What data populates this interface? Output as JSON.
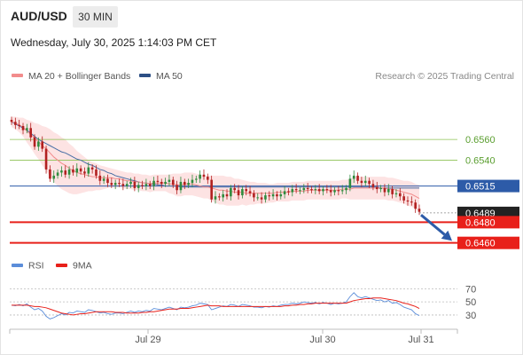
{
  "header": {
    "symbol": "AUD/USD",
    "timeframe": "30 MIN",
    "datetime": "Wednesday, July 30, 2025 1:14:03 PM CET",
    "credit": "Research © 2025 Trading Central"
  },
  "legend": {
    "ma20_label": "MA 20 + Bollinger Bands",
    "ma50_label": "MA 50",
    "rsi_label": "RSI",
    "ma9_label": "9MA"
  },
  "colors": {
    "ma20": "#f28c8c",
    "ma50": "#4a6fa5",
    "bands_fill": "#fde3e3",
    "resistance": "#8cc152",
    "support": "#e8201a",
    "pivot": "#2d5ba8",
    "current": "#222222",
    "bull": "#2e8b3e",
    "bear": "#b22020",
    "rsi": "#5b8dd9",
    "rsi_ma": "#e8201a",
    "arrow": "#2d5ba8"
  },
  "chart_data": [
    {
      "type": "candlestick",
      "title": "AUD/USD 30 MIN",
      "x_ticks": [
        "Jul 29",
        "Jul 30",
        "Jul 31"
      ],
      "ylim": [
        0.6452,
        0.6585
      ],
      "levels": [
        {
          "value": "0.6560",
          "kind": "resistance"
        },
        {
          "value": "0.6540",
          "kind": "resistance"
        },
        {
          "value": "0.6515",
          "kind": "pivot"
        },
        {
          "value": "0.6489",
          "kind": "current"
        },
        {
          "value": "0.6480",
          "kind": "support"
        },
        {
          "value": "0.6460",
          "kind": "support"
        }
      ],
      "close": [
        0.6577,
        0.6574,
        0.6573,
        0.6569,
        0.6571,
        0.6562,
        0.6553,
        0.6558,
        0.6551,
        0.6531,
        0.6522,
        0.6525,
        0.6528,
        0.653,
        0.6526,
        0.6531,
        0.6528,
        0.6532,
        0.6529,
        0.6527,
        0.6533,
        0.6531,
        0.6525,
        0.652,
        0.6522,
        0.6518,
        0.6516,
        0.6518,
        0.6517,
        0.6515,
        0.6517,
        0.6519,
        0.6513,
        0.6516,
        0.6515,
        0.6517,
        0.6515,
        0.652,
        0.6519,
        0.6517,
        0.6519,
        0.6521,
        0.6516,
        0.6511,
        0.6519,
        0.6516,
        0.6518,
        0.6521,
        0.6522,
        0.6526,
        0.6524,
        0.6521,
        0.6502,
        0.6505,
        0.6504,
        0.6507,
        0.6505,
        0.6513,
        0.6511,
        0.6506,
        0.6512,
        0.651,
        0.6508,
        0.6504,
        0.6504,
        0.6502,
        0.6506,
        0.6505,
        0.6507,
        0.6505,
        0.6507,
        0.651,
        0.6509,
        0.6512,
        0.6511,
        0.6511,
        0.6513,
        0.6512,
        0.6511,
        0.6512,
        0.651,
        0.6512,
        0.6511,
        0.6509,
        0.6511,
        0.651,
        0.6511,
        0.6513,
        0.6522,
        0.6525,
        0.652,
        0.6518,
        0.652,
        0.6517,
        0.6514,
        0.6512,
        0.6513,
        0.6509,
        0.6512,
        0.6507,
        0.6508,
        0.6505,
        0.6501,
        0.65,
        0.6499,
        0.6493,
        0.649
      ],
      "ma20": [
        0.6577,
        0.6576,
        0.6574,
        0.6572,
        0.6568,
        0.6565,
        0.6561,
        0.6558,
        0.6554,
        0.6551,
        0.6547,
        0.6543,
        0.654,
        0.6537,
        0.6535,
        0.6532,
        0.653,
        0.6528,
        0.6527,
        0.6526,
        0.6525,
        0.6524,
        0.6524,
        0.6523,
        0.6523,
        0.6523,
        0.6523,
        0.6522,
        0.6522,
        0.6521,
        0.652,
        0.652,
        0.6519,
        0.6519,
        0.6518,
        0.6518,
        0.6517,
        0.6518,
        0.6518,
        0.6518,
        0.6518,
        0.6517,
        0.6517,
        0.6516,
        0.6516,
        0.6517,
        0.6517,
        0.6517,
        0.6516,
        0.6515,
        0.6514,
        0.6514,
        0.6513,
        0.6512,
        0.6511,
        0.6511,
        0.651,
        0.651,
        0.6509,
        0.6509,
        0.6509,
        0.6508,
        0.6508,
        0.6508,
        0.6508,
        0.6508,
        0.6508,
        0.6508,
        0.6508,
        0.6509,
        0.6509,
        0.6509,
        0.6509,
        0.651,
        0.651,
        0.651,
        0.651,
        0.6511,
        0.6511,
        0.6511,
        0.6511,
        0.6511,
        0.6511,
        0.6511,
        0.6511,
        0.6511,
        0.6512,
        0.6512,
        0.6512,
        0.6513,
        0.6513,
        0.6513,
        0.6513,
        0.6513,
        0.6513,
        0.6513,
        0.6513,
        0.6513,
        0.6512,
        0.6512,
        0.6511,
        0.651,
        0.6509,
        0.6508,
        0.6507,
        0.6505,
        0.6503
      ],
      "ma50": [
        0.6577,
        0.6575,
        0.6573,
        0.6571,
        0.6569,
        0.6566,
        0.6563,
        0.656,
        0.6558,
        0.6556,
        0.6554,
        0.6552,
        0.655,
        0.6548,
        0.6547,
        0.6545,
        0.6543,
        0.6541,
        0.654,
        0.6538,
        0.6536,
        0.6535,
        0.6533,
        0.6531,
        0.653,
        0.6528,
        0.6527,
        0.6525,
        0.6524,
        0.6523,
        0.6522,
        0.6521,
        0.652,
        0.6519,
        0.6518,
        0.6518,
        0.6517,
        0.6517,
        0.6516,
        0.6516,
        0.6515,
        0.6515,
        0.6515,
        0.6515,
        0.6514,
        0.6514,
        0.6514,
        0.6514,
        0.6514,
        0.6514,
        0.6514,
        0.6514,
        0.6514,
        0.6514,
        0.6514,
        0.6514,
        0.6514,
        0.6514,
        0.6514,
        0.6514,
        0.6514,
        0.6514,
        0.6514,
        0.6514,
        0.6514,
        0.6514,
        0.6514,
        0.6514,
        0.6514,
        0.6514,
        0.6514,
        0.6514,
        0.6514,
        0.6514,
        0.6514,
        0.6514,
        0.6514,
        0.6514,
        0.6514,
        0.6514,
        0.6514,
        0.6514,
        0.6514,
        0.6514,
        0.6514,
        0.6514,
        0.6514,
        0.6514,
        0.6514,
        0.6514,
        0.6514,
        0.6514,
        0.6514,
        0.6514,
        0.6514,
        0.6514,
        0.6513,
        0.6513,
        0.6513,
        0.6513,
        0.6513,
        0.6513,
        0.6513,
        0.6513,
        0.6513,
        0.6513,
        0.6513
      ],
      "band_width": [
        0.0005,
        0.0006,
        0.0007,
        0.0009,
        0.0011,
        0.0013,
        0.0015,
        0.0017,
        0.0019,
        0.0021,
        0.0023,
        0.0024,
        0.0025,
        0.0025,
        0.0025,
        0.0024,
        0.0023,
        0.0021,
        0.0019,
        0.0017,
        0.0015,
        0.0014,
        0.0013,
        0.0012,
        0.0011,
        0.001,
        0.0009,
        0.0009,
        0.0008,
        0.0008,
        0.0008,
        0.0008,
        0.0008,
        0.0008,
        0.0008,
        0.0008,
        0.0008,
        0.0008,
        0.0008,
        0.0008,
        0.0008,
        0.0009,
        0.001,
        0.0011,
        0.0011,
        0.0011,
        0.0011,
        0.0011,
        0.0011,
        0.0011,
        0.0011,
        0.0011,
        0.0012,
        0.0013,
        0.0014,
        0.0014,
        0.0014,
        0.0014,
        0.0013,
        0.0013,
        0.0012,
        0.0012,
        0.0011,
        0.0011,
        0.001,
        0.001,
        0.001,
        0.0009,
        0.0009,
        0.0009,
        0.0009,
        0.0009,
        0.0009,
        0.0009,
        0.0009,
        0.0009,
        0.0009,
        0.0009,
        0.0009,
        0.0009,
        0.0009,
        0.0009,
        0.0009,
        0.0009,
        0.0009,
        0.0009,
        0.0009,
        0.0009,
        0.001,
        0.0011,
        0.0011,
        0.0011,
        0.0011,
        0.0011,
        0.0011,
        0.0011,
        0.0011,
        0.0011,
        0.0011,
        0.0011,
        0.0011,
        0.0011,
        0.0011,
        0.0012,
        0.0012,
        0.0012,
        0.0013
      ],
      "forecast_arrow": {
        "from": 0.6487,
        "to": 0.6462
      }
    },
    {
      "type": "line",
      "title": "RSI",
      "y_ticks": [
        70,
        50,
        30
      ],
      "ylim": [
        15,
        80
      ],
      "series": [
        {
          "name": "RSI",
          "values": [
            45,
            44,
            46,
            44,
            47,
            42,
            38,
            40,
            36,
            28,
            24,
            26,
            29,
            32,
            30,
            34,
            33,
            36,
            35,
            34,
            38,
            37,
            35,
            33,
            34,
            32,
            31,
            33,
            33,
            32,
            34,
            36,
            34,
            36,
            35,
            37,
            36,
            40,
            39,
            38,
            40,
            42,
            40,
            38,
            42,
            41,
            42,
            44,
            45,
            48,
            47,
            46,
            38,
            40,
            42,
            44,
            43,
            46,
            45,
            43,
            46,
            45,
            44,
            42,
            42,
            41,
            43,
            42,
            44,
            43,
            45,
            46,
            46,
            48,
            47,
            48,
            50,
            49,
            48,
            49,
            47,
            49,
            48,
            46,
            48,
            47,
            48,
            50,
            58,
            64,
            58,
            56,
            58,
            56,
            54,
            52,
            53,
            50,
            52,
            48,
            49,
            46,
            42,
            40,
            38,
            32,
            29
          ]
        },
        {
          "name": "9MA",
          "values": [
            45,
            45,
            45,
            45,
            45,
            44,
            43,
            43,
            42,
            41,
            39,
            37,
            35,
            33,
            32,
            31,
            30,
            31,
            32,
            32,
            33,
            34,
            35,
            35,
            35,
            35,
            35,
            34,
            34,
            34,
            33,
            33,
            33,
            33,
            34,
            34,
            35,
            35,
            36,
            37,
            38,
            39,
            39,
            39,
            40,
            40,
            40,
            41,
            42,
            43,
            44,
            45,
            44,
            44,
            44,
            43,
            43,
            43,
            43,
            43,
            43,
            43,
            43,
            43,
            43,
            43,
            43,
            43,
            43,
            43,
            43,
            44,
            44,
            45,
            45,
            46,
            46,
            47,
            47,
            48,
            48,
            48,
            48,
            48,
            48,
            48,
            48,
            48,
            50,
            52,
            53,
            54,
            55,
            55,
            56,
            56,
            56,
            55,
            54,
            53,
            52,
            50,
            48,
            47,
            45,
            43,
            40
          ]
        }
      ]
    }
  ]
}
